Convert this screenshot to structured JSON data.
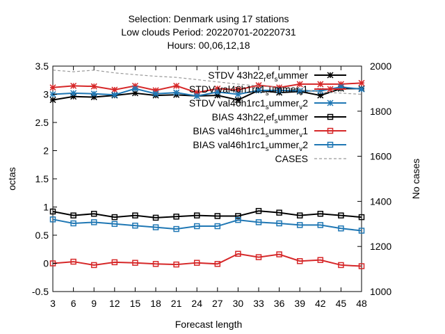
{
  "chart_data": {
    "type": "line",
    "title_lines": [
      "Selection: Denmark using    17 stations",
      "Low clouds   Period: 20220701-20220731",
      "Hours:  00,06,12,18"
    ],
    "xlabel": "Forecast length",
    "ylabel": "octas",
    "y2label": "No cases",
    "x": [
      3,
      6,
      9,
      12,
      15,
      18,
      21,
      24,
      27,
      30,
      33,
      36,
      39,
      42,
      45,
      48
    ],
    "xticks": [
      "3",
      "6",
      "9",
      "12",
      "15",
      "18",
      "21",
      "24",
      "27",
      "30",
      "33",
      "36",
      "39",
      "42",
      "45",
      "48"
    ],
    "ylim": [
      -0.5,
      3.5
    ],
    "yticks": [
      "-0.5",
      "0",
      "0.5",
      "1",
      "1.5",
      "2",
      "2.5",
      "3",
      "3.5"
    ],
    "y2lim": [
      1000,
      2000
    ],
    "y2ticks": [
      "1000",
      "1200",
      "1400",
      "1600",
      "1800",
      "2000"
    ],
    "legend_position": "top-right",
    "grid": false,
    "series": [
      {
        "name": "STDV 43h22_ref_summer",
        "label_base": "STDV 43h22",
        "label_sub": "r",
        "label_mid": "ef",
        "label_sub2": "s",
        "label_tail": "ummer",
        "axis": "y1",
        "color": "#000000",
        "marker": "star",
        "dashed": false,
        "values": [
          2.9,
          2.96,
          2.95,
          2.98,
          3.02,
          2.98,
          2.99,
          2.97,
          2.98,
          2.9,
          3.07,
          3.03,
          3.05,
          2.98,
          3.1,
          3.1
        ]
      },
      {
        "name": "STDV val46h1rc1_summer_v1",
        "label_base": "STDV val46h1rc1",
        "label_sub": "s",
        "label_mid": "ummer",
        "label_sub2": "v",
        "label_tail": "1",
        "axis": "y1",
        "color": "#d62728",
        "marker": "star",
        "dashed": false,
        "values": [
          3.12,
          3.15,
          3.14,
          3.08,
          3.15,
          3.07,
          3.15,
          3.03,
          3.1,
          3.08,
          3.16,
          3.12,
          3.18,
          3.18,
          3.18,
          3.2
        ]
      },
      {
        "name": "STDV val46h1rc1_summer_v2",
        "label_base": "STDV val46h1rc1",
        "label_sub": "s",
        "label_mid": "ummer",
        "label_sub2": "v",
        "label_tail": "2",
        "axis": "y1",
        "color": "#1f77b4",
        "marker": "star",
        "dashed": false,
        "values": [
          3.0,
          3.02,
          3.01,
          2.99,
          3.1,
          3.01,
          3.03,
          2.97,
          3.04,
          3.0,
          3.07,
          3.07,
          3.06,
          3.06,
          3.13,
          3.09
        ]
      },
      {
        "name": "BIAS 43h22_ref_summer",
        "label_base": "BIAS 43h22",
        "label_sub": "r",
        "label_mid": "ef",
        "label_sub2": "s",
        "label_tail": "ummer",
        "axis": "y1",
        "color": "#000000",
        "marker": "square",
        "dashed": false,
        "values": [
          0.92,
          0.85,
          0.88,
          0.82,
          0.85,
          0.81,
          0.83,
          0.85,
          0.84,
          0.84,
          0.93,
          0.9,
          0.85,
          0.88,
          0.85,
          0.82
        ]
      },
      {
        "name": "BIAS val46h1rc1_summer_v1",
        "label_base": "BIAS val46h1rc1",
        "label_sub": "s",
        "label_mid": "ummer",
        "label_sub2": "v",
        "label_tail": "1",
        "axis": "y1",
        "color": "#d62728",
        "marker": "square",
        "dashed": false,
        "values": [
          0.0,
          0.03,
          -0.03,
          0.02,
          0.01,
          -0.01,
          -0.02,
          0.01,
          -0.01,
          0.17,
          0.11,
          0.16,
          0.04,
          0.06,
          -0.03,
          -0.05
        ]
      },
      {
        "name": "BIAS val46h1rc1_summer_v2",
        "label_base": "BIAS val46h1rc1",
        "label_sub": "s",
        "label_mid": "ummer",
        "label_sub2": "v",
        "label_tail": "2",
        "axis": "y1",
        "color": "#1f77b4",
        "marker": "square",
        "dashed": false,
        "values": [
          0.78,
          0.71,
          0.73,
          0.7,
          0.67,
          0.64,
          0.61,
          0.66,
          0.66,
          0.77,
          0.73,
          0.71,
          0.68,
          0.68,
          0.62,
          0.58
        ]
      },
      {
        "name": "CASES",
        "label_base": "CASES",
        "label_sub": "",
        "label_mid": "",
        "label_sub2": "",
        "label_tail": "",
        "axis": "y2",
        "color": "#999999",
        "marker": "none",
        "dashed": true,
        "values": [
          1982,
          1975,
          1982,
          1970,
          1962,
          1955,
          1950,
          1940,
          1930,
          1920,
          1912,
          1905,
          1898,
          1885,
          1880,
          1875
        ]
      }
    ]
  }
}
